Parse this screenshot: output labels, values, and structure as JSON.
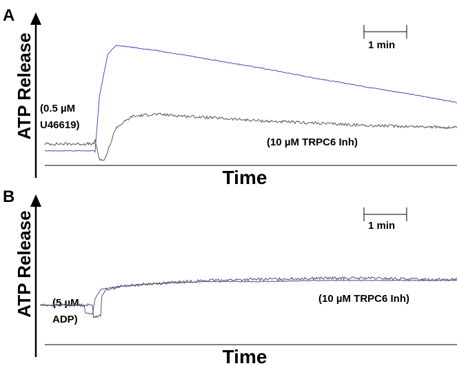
{
  "chart_data": [
    {
      "type": "line",
      "panel": "A",
      "ylabel": "ATP Release",
      "xlabel": "Time",
      "scale_bar": "1 min",
      "annotations": {
        "agonist_line1": "(0.5 µM",
        "agonist_line2": "U46619)",
        "treatment": "(10 µM TRPC6 Inh)"
      },
      "series": [
        {
          "color": "#4a4ac0",
          "x": [
            0,
            0.9,
            0.92,
            1.0,
            1.15,
            1.3,
            1.5,
            2.0,
            3.0,
            4.0,
            5.0,
            6.0,
            7.0,
            7.55
          ],
          "y": [
            0.08,
            0.08,
            0.07,
            0.55,
            0.92,
            1.0,
            0.99,
            0.96,
            0.88,
            0.8,
            0.71,
            0.63,
            0.55,
            0.5
          ]
        },
        {
          "color": "#555555",
          "x": [
            0,
            0.9,
            0.92,
            1.0,
            1.1,
            1.3,
            1.6,
            2.0,
            3.0,
            4.0,
            5.0,
            6.0,
            7.0,
            7.55
          ],
          "y": [
            0.14,
            0.14,
            0.18,
            0.0,
            0.0,
            0.28,
            0.38,
            0.4,
            0.37,
            0.34,
            0.32,
            0.3,
            0.29,
            0.28
          ]
        }
      ]
    },
    {
      "type": "line",
      "panel": "B",
      "ylabel": "ATP Release",
      "xlabel": "Time",
      "scale_bar": "1 min",
      "annotations": {
        "agonist_line1": "(5 µM",
        "agonist_line2": "ADP)",
        "treatment": "(10 µM TRPC6 Inh)"
      },
      "series": [
        {
          "color": "#4a4ac0",
          "x": [
            0,
            0.8,
            0.82,
            0.95,
            1.0,
            1.1,
            1.5,
            2.0,
            3.0,
            4.0,
            5.0,
            6.0,
            7.0,
            7.55
          ],
          "y": [
            0.12,
            0.12,
            0.05,
            0.04,
            0.18,
            0.26,
            0.29,
            0.31,
            0.33,
            0.33,
            0.34,
            0.34,
            0.34,
            0.34
          ]
        },
        {
          "color": "#555555",
          "x": [
            0,
            0.8,
            0.95,
            0.97,
            1.1,
            1.12,
            1.2,
            1.5,
            2.0,
            3.0,
            4.0,
            5.0,
            6.0,
            7.0,
            7.55
          ],
          "y": [
            0.12,
            0.12,
            0.12,
            0.02,
            0.02,
            0.2,
            0.26,
            0.29,
            0.31,
            0.34,
            0.35,
            0.36,
            0.36,
            0.35,
            0.35
          ]
        }
      ]
    }
  ]
}
